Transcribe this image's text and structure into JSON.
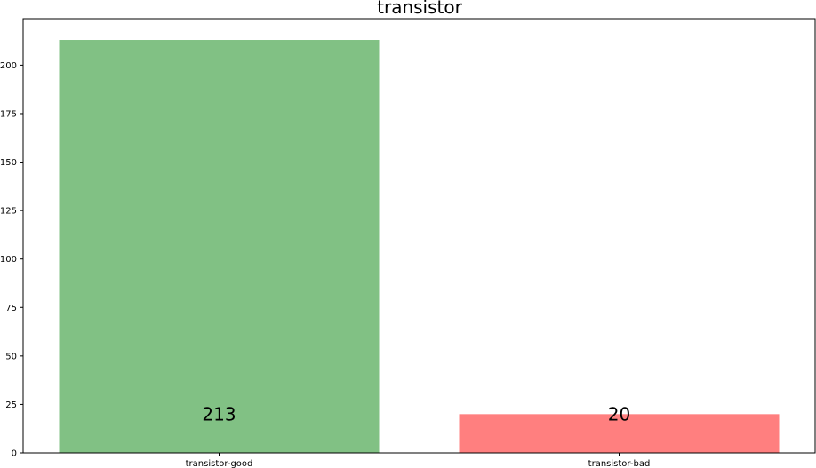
{
  "chart_data": {
    "type": "bar",
    "title": "transistor",
    "categories": [
      "transistor-good",
      "transistor-bad"
    ],
    "values": [
      213,
      20
    ],
    "colors": [
      "#81c184",
      "#ff7f7f"
    ],
    "data_labels": [
      "213",
      "20"
    ],
    "xlabel": "",
    "ylabel": "",
    "ylim": [
      0,
      224
    ],
    "yticks": [
      0,
      25,
      50,
      75,
      100,
      125,
      150,
      175,
      200
    ],
    "grid": false,
    "legend": "none"
  }
}
